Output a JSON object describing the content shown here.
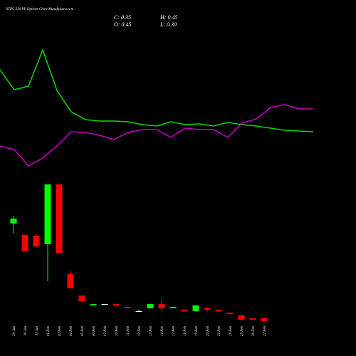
{
  "chart_data": {
    "type": "candlestick",
    "title": "NTPC 330 PE Options Chart Munafasutra.com",
    "ohlc_labels": [
      "C: 0.35",
      "H: 0.45",
      "O: 0.45",
      "L: 0.30"
    ],
    "categories": [
      "29 Jan",
      "30 Jan",
      "31 Jan",
      "01 Feb",
      "03 Feb",
      "04 Feb",
      "05 Feb",
      "06 Feb",
      "07 Feb",
      "10 Feb",
      "11 Feb",
      "12 Feb",
      "13 Feb",
      "14 Feb",
      "17 Feb",
      "18 Feb",
      "19 Feb",
      "20 Feb",
      "21 Feb",
      "24 Feb",
      "25 Feb",
      "26 Feb",
      "27 Feb"
    ],
    "open": [
      3.78,
      3.38,
      3.35,
      3.05,
      5.15,
      2.0,
      1.25,
      0.9,
      0.95,
      0.95,
      0.85,
      0.7,
      0.8,
      0.95,
      0.8,
      0.75,
      0.7,
      0.8,
      0.75,
      0.65,
      0.55,
      0.45,
      0.45
    ],
    "high": [
      4.05,
      3.38,
      3.4,
      5.15,
      5.15,
      2.1,
      1.25,
      0.95,
      0.95,
      0.95,
      0.85,
      0.75,
      0.95,
      1.15,
      0.85,
      0.75,
      0.9,
      0.85,
      0.75,
      0.65,
      0.55,
      0.45,
      0.45
    ],
    "low": [
      3.43,
      2.8,
      2.95,
      1.75,
      2.7,
      1.5,
      1.0,
      0.9,
      0.95,
      0.85,
      0.8,
      0.7,
      0.8,
      0.75,
      0.8,
      0.7,
      0.7,
      0.65,
      0.7,
      0.6,
      0.4,
      0.4,
      0.3
    ],
    "close": [
      3.95,
      2.8,
      2.98,
      5.15,
      2.75,
      1.5,
      1.05,
      0.95,
      0.95,
      0.9,
      0.8,
      0.7,
      0.95,
      0.8,
      0.85,
      0.7,
      0.9,
      0.75,
      0.7,
      0.6,
      0.4,
      0.4,
      0.35
    ],
    "up_color": "#00ff00",
    "down_color": "#ff0000",
    "ylim": [
      0,
      11.625
    ],
    "lines": [
      {
        "color": "#00dd00",
        "values": [
          91,
          77,
          79.5,
          105,
          76.5,
          61.5,
          56,
          55,
          55,
          54.5,
          52.5,
          51.5,
          54.5,
          52.5,
          53,
          51.5,
          54,
          52.5,
          51.5,
          50,
          48.5,
          48,
          47.5
        ]
      },
      {
        "color": "#cc00cc",
        "values": [
          37.5,
          35,
          23.5,
          29,
          37.5,
          47.5,
          47,
          45,
          42,
          47,
          49,
          49,
          43.5,
          50,
          49,
          49,
          43.5,
          53.5,
          56.5,
          64.5,
          66.5,
          63.5,
          63.5
        ]
      }
    ],
    "lines_ylim": [
      0,
      140
    ]
  }
}
